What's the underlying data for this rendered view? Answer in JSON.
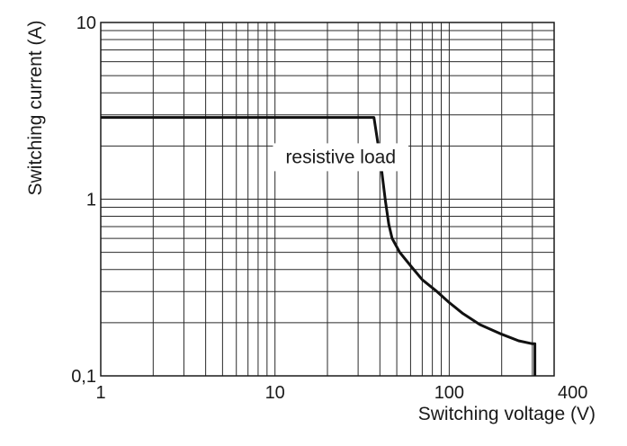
{
  "chart_data": {
    "type": "line",
    "title": "",
    "xlabel": "Switching voltage (V)",
    "ylabel": "Switching current (A)",
    "x_scale": "log",
    "y_scale": "log",
    "xlim": [
      1,
      400
    ],
    "ylim": [
      0.1,
      10
    ],
    "grid": true,
    "x_ticks": [
      {
        "value": 1,
        "label": "1"
      },
      {
        "value": 10,
        "label": "10"
      },
      {
        "value": 100,
        "label": "100"
      },
      {
        "value": 400,
        "label": "400"
      }
    ],
    "y_ticks": [
      {
        "value": 0.1,
        "label": "0,1"
      },
      {
        "value": 1,
        "label": "1"
      },
      {
        "value": 10,
        "label": "10"
      }
    ],
    "annotations": [
      {
        "text": "resistive load",
        "x": 11.5,
        "y": 1.6
      }
    ],
    "series": [
      {
        "color": "#111111",
        "points": [
          {
            "x": 1,
            "y": 2.9
          },
          {
            "x": 37,
            "y": 2.9
          },
          {
            "x": 40,
            "y": 1.75
          },
          {
            "x": 43,
            "y": 0.98
          },
          {
            "x": 45,
            "y": 0.72
          },
          {
            "x": 47,
            "y": 0.6
          },
          {
            "x": 52,
            "y": 0.5
          },
          {
            "x": 60,
            "y": 0.42
          },
          {
            "x": 70,
            "y": 0.35
          },
          {
            "x": 85,
            "y": 0.3
          },
          {
            "x": 100,
            "y": 0.26
          },
          {
            "x": 120,
            "y": 0.225
          },
          {
            "x": 150,
            "y": 0.195
          },
          {
            "x": 200,
            "y": 0.172
          },
          {
            "x": 250,
            "y": 0.158
          },
          {
            "x": 300,
            "y": 0.152
          },
          {
            "x": 310,
            "y": 0.152
          },
          {
            "x": 310,
            "y": 0.1
          }
        ]
      }
    ]
  }
}
